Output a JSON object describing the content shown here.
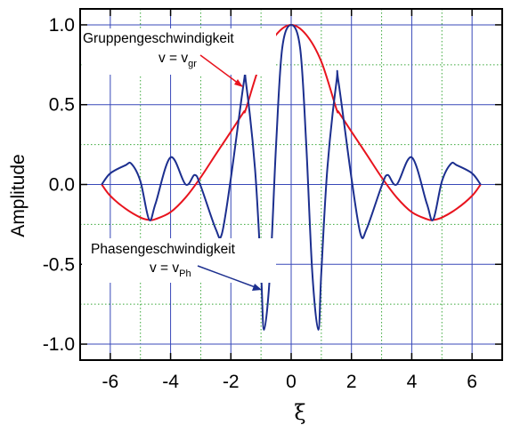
{
  "chart_data": {
    "type": "line",
    "title": "",
    "xlabel": "ξ",
    "ylabel": "Amplitude",
    "xlim": [
      -7,
      7
    ],
    "ylim": [
      -1.1,
      1.1
    ],
    "x_ticks": [
      -6,
      -4,
      -2,
      0,
      2,
      4,
      6
    ],
    "x_tick_labels": [
      "-6",
      "-4",
      "-2",
      "0",
      "2",
      "4",
      "6"
    ],
    "y_ticks": [
      -1.0,
      -0.5,
      0.0,
      0.5,
      1.0
    ],
    "y_tick_labels": [
      "-1.0",
      "-0.5",
      "0.0",
      "0.5",
      "1.0"
    ],
    "grid": "major solid blue, minor dotted green",
    "legend": "none",
    "series": [
      {
        "color": "#e8141e",
        "x": [
          -6.283,
          -6,
          -5.5,
          -5,
          -4.712,
          -4.5,
          -4,
          -3.5,
          -3,
          -2.5,
          -2,
          -1.571,
          -1.5,
          -1,
          -0.5,
          0,
          0.5,
          1,
          1.5,
          1.571,
          2,
          2.5,
          3,
          3.5,
          4,
          4.5,
          4.712,
          5,
          5.5,
          6,
          6.283
        ],
        "y": [
          0.0,
          -0.071,
          -0.151,
          -0.207,
          -0.222,
          -0.217,
          -0.173,
          -0.081,
          0.045,
          0.189,
          0.331,
          0.455,
          0.474,
          0.77,
          0.938,
          1.0,
          0.938,
          0.77,
          0.474,
          0.455,
          0.331,
          0.189,
          0.045,
          -0.081,
          -0.173,
          -0.217,
          -0.222,
          -0.207,
          -0.151,
          -0.071,
          0.0
        ]
      },
      {
        "color": "#1c2f8f",
        "x": [
          -6.283,
          -6,
          -5.5,
          -5.3,
          -5,
          -4.712,
          -4.5,
          -4,
          -3.5,
          -3.2,
          -3,
          -2.5,
          -2.3,
          -2,
          -1.571,
          -1.5,
          -1.2,
          -1,
          -0.9,
          -0.7,
          -0.5,
          -0.3,
          0,
          0.3,
          0.5,
          0.7,
          0.9,
          1,
          1.2,
          1.5,
          1.571,
          2,
          2.3,
          2.5,
          3,
          3.2,
          3.5,
          4,
          4.5,
          4.712,
          5,
          5.3,
          5.5,
          6,
          6.283
        ],
        "y": [
          0.0,
          0.07,
          0.12,
          0.13,
          0.02,
          -0.22,
          -0.12,
          0.17,
          0.0,
          0.06,
          -0.01,
          -0.28,
          -0.31,
          0.04,
          0.64,
          0.64,
          0.1,
          -0.55,
          -0.91,
          -0.55,
          0.25,
          0.85,
          1.0,
          0.85,
          0.25,
          -0.55,
          -0.91,
          -0.55,
          0.1,
          0.64,
          0.64,
          0.04,
          -0.31,
          -0.28,
          -0.01,
          0.06,
          0.0,
          0.17,
          -0.12,
          -0.22,
          0.02,
          0.13,
          0.12,
          0.07,
          0.0
        ]
      }
    ],
    "annotations": [
      {
        "name": "group",
        "text": "Gruppengeschwindigkeit",
        "formula_main": "v = v",
        "formula_sub": "gr"
      },
      {
        "name": "phase",
        "text": "Phasengeschwindigkeit",
        "formula_main": "v = v",
        "formula_sub": "Ph"
      }
    ]
  }
}
